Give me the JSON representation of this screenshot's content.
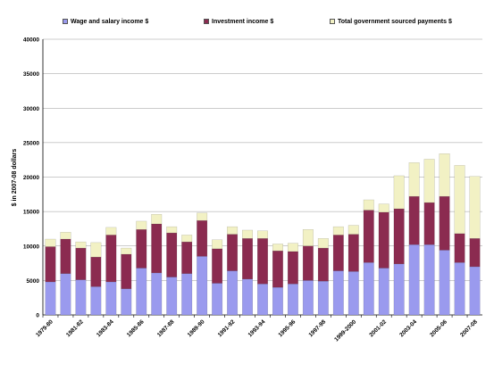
{
  "chart_data": {
    "type": "bar",
    "stacked": true,
    "title": "",
    "xlabel": "",
    "ylabel": "$ in 2007-08 dollars",
    "ylim": [
      0,
      40000
    ],
    "yticks": [
      0,
      5000,
      10000,
      15000,
      20000,
      25000,
      30000,
      35000,
      40000
    ],
    "grid": true,
    "legend_position": "top",
    "categories": [
      "1979-80",
      "1980-81",
      "1981-82",
      "1982-83",
      "1983-84",
      "1984-85",
      "1985-86",
      "1986-87",
      "1987-88",
      "1988-89",
      "1989-90",
      "1990-91",
      "1991-92",
      "1992-93",
      "1993-94",
      "1994-95",
      "1995-96",
      "1996-97",
      "1997-98",
      "1998-99",
      "1999-2000",
      "2000-01",
      "2001-02",
      "2002-03",
      "2003-04",
      "2004-05",
      "2005-06",
      "2006-07",
      "2007-08"
    ],
    "xtick_labels": [
      "1979-80",
      "1981-82",
      "1983-84",
      "1985-86",
      "1987-88",
      "1989-90",
      "1991-92",
      "1993-94",
      "1995-96",
      "1997-98",
      "1999-2000",
      "2001-02",
      "2003-04",
      "2005-06",
      "2007-08"
    ],
    "series": [
      {
        "name": "Wage and salary income $",
        "color": "#9a9aee",
        "values": [
          4800,
          6000,
          5100,
          4100,
          4800,
          3800,
          6800,
          6100,
          5500,
          6000,
          8500,
          4600,
          6400,
          5200,
          4500,
          4000,
          4500,
          5000,
          4900,
          6400,
          6300,
          7600,
          6800,
          7400,
          10200,
          10200,
          9400,
          7600,
          7000
        ]
      },
      {
        "name": "Investment income $",
        "color": "#8b2b50",
        "values": [
          5100,
          5000,
          4600,
          4300,
          6800,
          5000,
          5600,
          7100,
          6400,
          4600,
          5200,
          5000,
          5300,
          5900,
          6600,
          5300,
          4700,
          5000,
          4800,
          5200,
          5400,
          7600,
          8100,
          8000,
          7000,
          6100,
          7800,
          4200,
          4100
        ]
      },
      {
        "name": "Total government sourced payments $",
        "color": "#f2f1c4",
        "values": [
          1100,
          1000,
          900,
          2100,
          1100,
          900,
          1200,
          1400,
          900,
          1000,
          1100,
          1300,
          1100,
          1200,
          1100,
          1000,
          1200,
          2400,
          1400,
          1200,
          1300,
          1500,
          1200,
          4800,
          4900,
          6300,
          6200,
          9900,
          9000
        ]
      }
    ]
  }
}
